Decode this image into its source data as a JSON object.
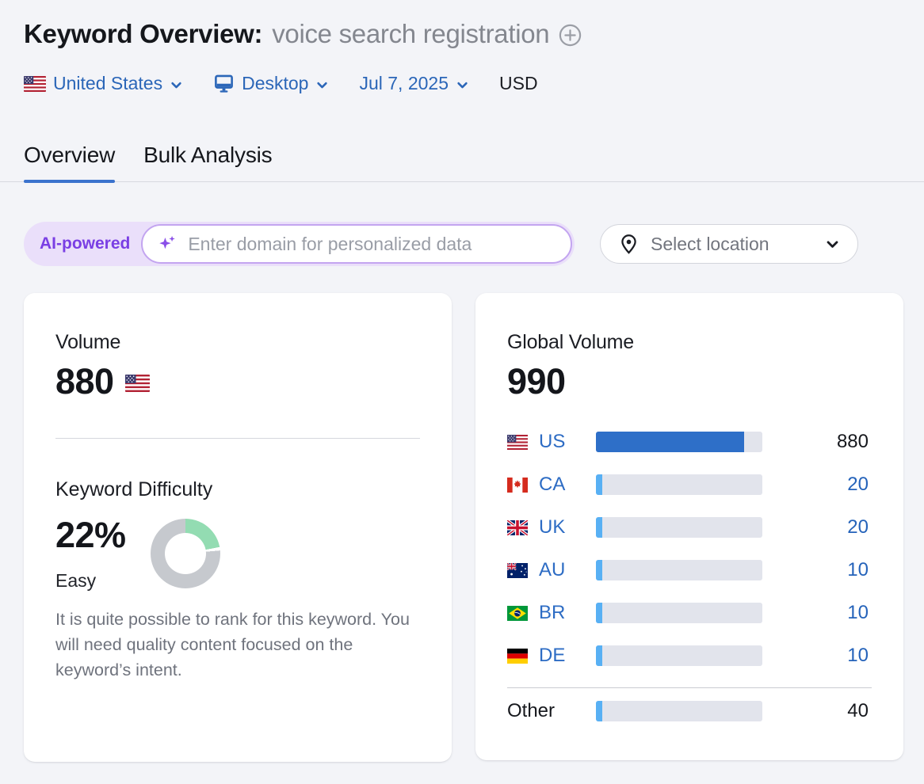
{
  "header": {
    "title": "Keyword Overview:",
    "keyword": "voice search registration"
  },
  "filters": {
    "country": "United States",
    "device": "Desktop",
    "date": "Jul 7, 2025",
    "currency": "USD"
  },
  "tabs": [
    {
      "label": "Overview",
      "active": true
    },
    {
      "label": "Bulk Analysis",
      "active": false
    }
  ],
  "ai_banner": {
    "badge": "AI-powered",
    "input_placeholder": "Enter domain for personalized data",
    "input_value": "",
    "location_button": "Select location"
  },
  "volume_card": {
    "title": "Volume",
    "value": "880",
    "flag": "us",
    "kd_title": "Keyword Difficulty",
    "kd_value": "22%",
    "kd_percent": 22,
    "kd_label": "Easy",
    "kd_description": "It is quite possible to rank for this keyword. You will need quality content focused on the keyword’s intent."
  },
  "global_volume_card": {
    "title": "Global Volume",
    "value": "990",
    "max": 990,
    "rows": [
      {
        "country": "US",
        "flag": "us",
        "value": 880,
        "display": "880",
        "highlight": true,
        "value_style": "dark",
        "link": false
      },
      {
        "country": "CA",
        "flag": "ca",
        "value": 20,
        "display": "20",
        "highlight": false,
        "value_style": "blue",
        "link": true
      },
      {
        "country": "UK",
        "flag": "uk",
        "value": 20,
        "display": "20",
        "highlight": false,
        "value_style": "blue",
        "link": true
      },
      {
        "country": "AU",
        "flag": "au",
        "value": 10,
        "display": "10",
        "highlight": false,
        "value_style": "blue",
        "link": true
      },
      {
        "country": "BR",
        "flag": "br",
        "value": 10,
        "display": "10",
        "highlight": false,
        "value_style": "blue",
        "link": true
      },
      {
        "country": "DE",
        "flag": "de",
        "value": 10,
        "display": "10",
        "highlight": false,
        "value_style": "blue",
        "link": true
      }
    ],
    "other_row": {
      "label": "Other",
      "value": 40,
      "display": "40"
    }
  },
  "colors": {
    "bar_blue": "#2e6fc8",
    "bar_light_blue": "#58b0f4",
    "bar_track": "#e2e4ec",
    "link_blue": "#2b66b8",
    "kd_green": "#93dcb2",
    "kd_gray": "#c6c9ce",
    "ai_purple": "#7a3fe4",
    "tab_accent": "#3b72cd"
  },
  "icons": {
    "add_keyword": "plus-circle-icon",
    "device": "monitor-icon",
    "dropdown": "chevron-down-icon",
    "ai": "sparkles-icon",
    "location": "map-pin-icon"
  }
}
